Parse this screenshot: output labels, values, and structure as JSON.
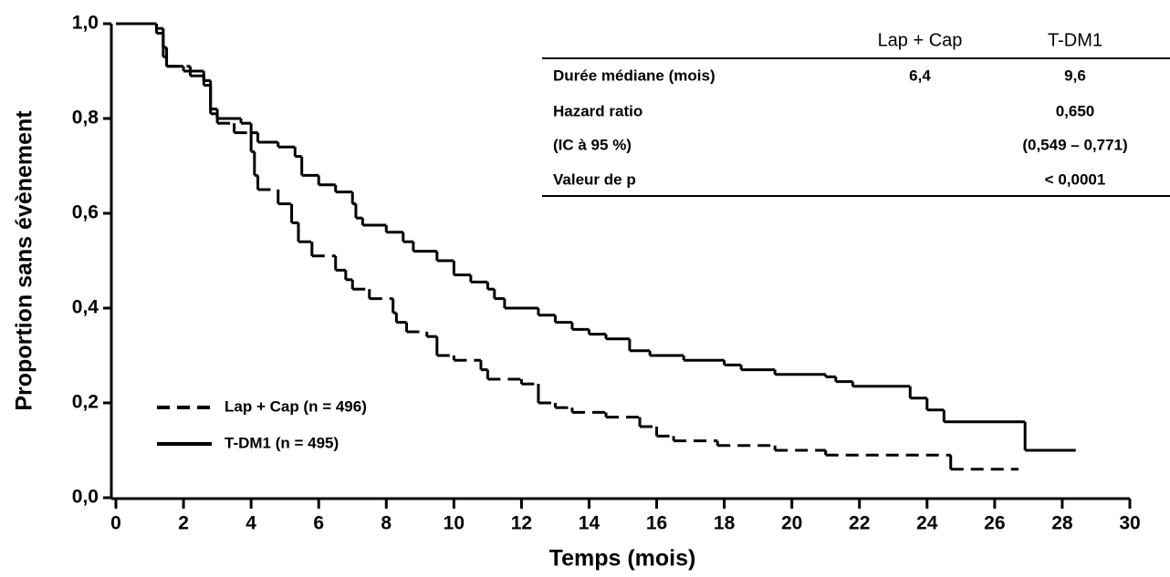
{
  "chart_data": {
    "type": "step",
    "drawstyle": "steps-post",
    "xlabel": "Temps (mois)",
    "ylabel": "Proportion sans évènement",
    "xlim": [
      0,
      30
    ],
    "xticks": [
      0,
      2,
      4,
      6,
      8,
      10,
      12,
      14,
      16,
      18,
      20,
      22,
      24,
      26,
      28,
      30
    ],
    "ylim": [
      0,
      1
    ],
    "yticks": [
      {
        "value": 0,
        "label": "0,0"
      },
      {
        "value": 0.2,
        "label": "0,2"
      },
      {
        "value": 0.4,
        "label": "0,4"
      },
      {
        "value": 0.6,
        "label": "0,6"
      },
      {
        "value": 0.8,
        "label": "0,8"
      },
      {
        "value": 1,
        "label": "1,0"
      }
    ],
    "legend": "lower left",
    "series": [
      {
        "name": "Lap + Cap (n = 496)",
        "color": "#000000",
        "dash": "dashed",
        "x": [
          0,
          1.2,
          1.4,
          1.5,
          2.2,
          2.6,
          2.8,
          3.0,
          3.5,
          4.0,
          4.1,
          4.2,
          4.8,
          5.2,
          5.4,
          5.8,
          6.5,
          6.8,
          7.0,
          7.5,
          8.2,
          8.3,
          8.6,
          9.2,
          9.5,
          10.0,
          10.8,
          11.0,
          12.0,
          12.5,
          13.0,
          13.5,
          14.5,
          15.5,
          16.0,
          16.5,
          17.8,
          19.5,
          21.0,
          24.7,
          26.7
        ],
        "values": [
          1.0,
          0.98,
          0.93,
          0.91,
          0.89,
          0.87,
          0.82,
          0.79,
          0.77,
          0.73,
          0.68,
          0.65,
          0.62,
          0.58,
          0.54,
          0.51,
          0.48,
          0.46,
          0.44,
          0.42,
          0.39,
          0.37,
          0.35,
          0.34,
          0.3,
          0.29,
          0.27,
          0.25,
          0.24,
          0.2,
          0.19,
          0.18,
          0.17,
          0.15,
          0.13,
          0.12,
          0.11,
          0.1,
          0.09,
          0.06,
          0.06
        ]
      },
      {
        "name": "T-DM1 (n = 495)",
        "color": "#000000",
        "dash": "solid",
        "x": [
          0,
          1.2,
          1.4,
          1.5,
          2.0,
          2.6,
          2.8,
          3.0,
          3.7,
          4.0,
          4.2,
          4.8,
          5.3,
          5.5,
          6.0,
          6.5,
          7.0,
          7.1,
          7.3,
          8.0,
          8.5,
          8.8,
          9.5,
          10.0,
          10.5,
          11.0,
          11.2,
          11.5,
          12.5,
          13.0,
          13.5,
          14.0,
          14.5,
          15.2,
          15.8,
          16.8,
          18.0,
          18.5,
          19.5,
          21.0,
          21.3,
          21.8,
          23.5,
          24.0,
          24.5,
          26.9,
          28.4
        ],
        "values": [
          1.0,
          0.99,
          0.95,
          0.91,
          0.9,
          0.88,
          0.81,
          0.8,
          0.79,
          0.77,
          0.75,
          0.74,
          0.72,
          0.68,
          0.66,
          0.645,
          0.62,
          0.59,
          0.575,
          0.56,
          0.54,
          0.52,
          0.5,
          0.47,
          0.455,
          0.44,
          0.42,
          0.4,
          0.385,
          0.37,
          0.355,
          0.345,
          0.335,
          0.31,
          0.3,
          0.29,
          0.28,
          0.27,
          0.26,
          0.255,
          0.245,
          0.235,
          0.21,
          0.185,
          0.16,
          0.1,
          0.1
        ]
      }
    ],
    "table": {
      "columns": [
        "Lap + Cap",
        "T-DM1"
      ],
      "rows": [
        {
          "label": "Durée médiane (mois)",
          "lap_cap": "6,4",
          "t_dm1": "9,6"
        },
        {
          "label": "Hazard ratio",
          "t_dm1": "0,650"
        },
        {
          "label": "(IC à 95 %)",
          "t_dm1": "(0,549 – 0,771)"
        },
        {
          "label": "Valeur de p",
          "t_dm1": "< 0,0001"
        }
      ]
    }
  }
}
